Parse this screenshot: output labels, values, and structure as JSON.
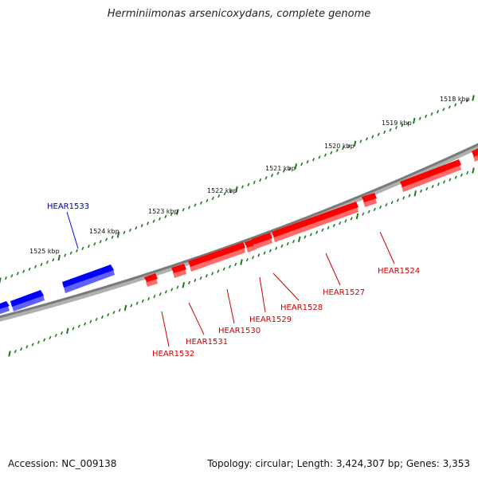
{
  "title": "Herminiimonas arsenicoxydans, complete genome",
  "footer": {
    "accession": "Accession: NC_009138",
    "summary": "Topology: circular; Length: 3,424,307 bp; Genes: 3,353"
  },
  "colors": {
    "forward_gene": "#ff0000",
    "reverse_gene": "#0000ff",
    "backbone": "#808080",
    "tick": "#1a7a1a",
    "forward_label": "#cc0000",
    "reverse_label": "#0000aa"
  },
  "kbp_labels": [
    "1518 kbp",
    "1519 kbp",
    "1520 kbp",
    "1521 kbp",
    "1522 kbp",
    "1523 kbp",
    "1524 kbp",
    "1525 kbp"
  ],
  "genes": [
    {
      "locus": "HEAR1524",
      "strand": "forward"
    },
    {
      "locus": "HEAR1527",
      "strand": "forward"
    },
    {
      "locus": "HEAR1528",
      "strand": "forward"
    },
    {
      "locus": "HEAR1529",
      "strand": "forward"
    },
    {
      "locus": "HEAR1530",
      "strand": "forward"
    },
    {
      "locus": "HEAR1531",
      "strand": "forward"
    },
    {
      "locus": "HEAR1532",
      "strand": "forward"
    },
    {
      "locus": "HEAR1533",
      "strand": "reverse"
    }
  ]
}
